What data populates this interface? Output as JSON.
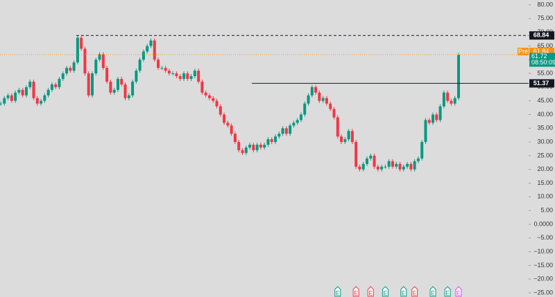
{
  "chart_data": {
    "type": "candlestick",
    "closes": [
      44,
      46,
      47,
      45,
      48,
      49,
      47,
      50,
      52,
      46,
      44,
      45,
      47,
      49,
      51,
      50,
      53,
      55,
      57,
      56,
      59,
      68,
      64,
      55,
      47,
      55,
      60,
      62,
      57,
      52,
      48,
      49,
      53,
      51,
      46,
      47,
      52,
      56,
      60,
      63,
      65,
      67,
      60,
      57,
      57,
      56,
      55,
      55,
      54,
      53,
      55,
      53,
      54,
      56,
      52,
      48,
      47,
      46,
      45,
      43,
      40,
      37,
      36,
      33,
      30,
      27,
      26,
      28,
      29,
      27,
      29,
      28,
      29,
      31,
      30,
      32,
      33,
      35,
      33,
      36,
      37,
      38,
      40,
      44,
      47,
      50,
      48,
      45,
      46,
      44,
      42,
      39,
      32,
      30,
      31,
      34,
      30,
      21,
      20,
      22,
      24,
      25,
      21,
      20,
      21,
      21,
      23,
      21,
      22,
      20,
      21,
      22,
      20,
      23,
      24,
      30,
      38,
      37,
      40,
      38,
      43,
      48,
      45,
      44,
      46,
      61.72
    ],
    "up_color": "#089981",
    "down_color": "#f23645",
    "ylim": [
      -25,
      80
    ],
    "yticks": [
      {
        "value": 80,
        "label": "80.00"
      },
      {
        "value": 75,
        "label": "75.00"
      },
      {
        "value": 70,
        "label": "70.00"
      },
      {
        "value": 65,
        "label": "65.00"
      },
      {
        "value": 60,
        "label": "60.00"
      },
      {
        "value": 55,
        "label": "55.00"
      },
      {
        "value": 50,
        "label": "50.00"
      },
      {
        "value": 45,
        "label": "45.00"
      },
      {
        "value": 40,
        "label": "40.00"
      },
      {
        "value": 35,
        "label": "35.00"
      },
      {
        "value": 30,
        "label": "30.00"
      },
      {
        "value": 25,
        "label": "25.00"
      },
      {
        "value": 20,
        "label": "20.00"
      },
      {
        "value": 15,
        "label": "15.00"
      },
      {
        "value": 10,
        "label": "10.00"
      },
      {
        "value": 5,
        "label": "5.00"
      },
      {
        "value": 0,
        "label": "0.0000"
      },
      {
        "value": -5,
        "label": "−5.00"
      },
      {
        "value": -10,
        "label": "−10.00"
      },
      {
        "value": -15,
        "label": "−15.00"
      },
      {
        "value": -20,
        "label": "−20.00"
      },
      {
        "value": -25,
        "label": "−25.00"
      }
    ],
    "price_lines": [
      {
        "value": 68.84,
        "label": "68.84",
        "style": "dashed",
        "color": "#131722",
        "from": 110
      },
      {
        "value": 51.37,
        "label": "51.37",
        "style": "solid",
        "color": "#131722",
        "from": 363
      }
    ],
    "premarket": {
      "tag": "Pre",
      "value": 61.84,
      "label": "61.84",
      "color": "#f7931a"
    },
    "last": {
      "value": 61.72,
      "label": "61.72",
      "countdown": "08:50:09",
      "color": "#089981"
    },
    "events": [
      {
        "label": "E",
        "color": "#089981",
        "at": 92
      },
      {
        "label": "E",
        "color": "#f23645",
        "at": 97
      },
      {
        "label": "E",
        "color": "#f23645",
        "at": 101
      },
      {
        "label": "E",
        "color": "#089981",
        "at": 105
      },
      {
        "label": "E",
        "color": "#089981",
        "at": 110
      },
      {
        "label": "E",
        "color": "#f23645",
        "at": 113
      },
      {
        "label": "E",
        "color": "#089981",
        "at": 118
      },
      {
        "label": "E",
        "color": "#089981",
        "at": 122
      },
      {
        "label": "E",
        "color": "#e040fb",
        "at": 125
      }
    ]
  }
}
